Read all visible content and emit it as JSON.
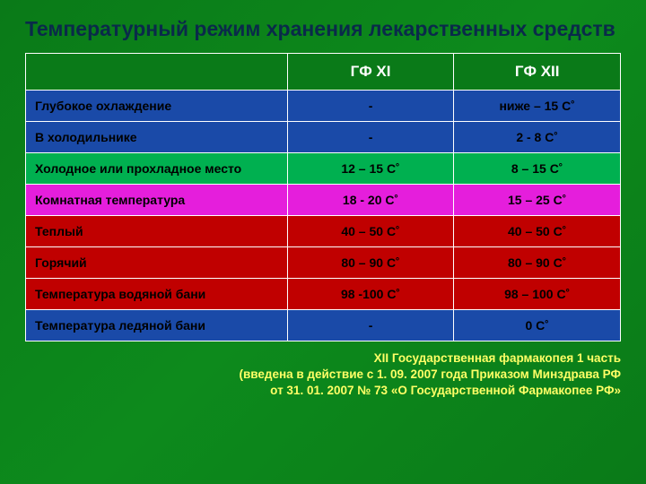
{
  "title": "Температурный режим хранения лекарственных средств",
  "table": {
    "header": {
      "corner": "",
      "col1": "ГФ XI",
      "col2": "ГФ XII"
    },
    "rows": [
      {
        "label": "Глубокое охлаждение",
        "v1": "-",
        "v2": "ниже – 15 С˚",
        "bg": "#1a4aa8"
      },
      {
        "label": "В холодильнике",
        "v1": "-",
        "v2": "2  -  8 С˚",
        "bg": "#1a4aa8"
      },
      {
        "label": "Холодное или прохладное место",
        "v1": "12 – 15 С˚",
        "v2": "8 – 15 С˚",
        "bg": "#00b050"
      },
      {
        "label": "Комнатная температура",
        "v1": "18 - 20 С˚",
        "v2": "15 – 25 С˚",
        "bg": "#e51edc"
      },
      {
        "label": "Теплый",
        "v1": "40 – 50 С˚",
        "v2": "40 – 50 С˚",
        "bg": "#c00000"
      },
      {
        "label": "Горячий",
        "v1": "80 – 90 С˚",
        "v2": "80 – 90 С˚",
        "bg": "#c00000"
      },
      {
        "label": "Температура водяной бани",
        "v1": "98 -100 С˚",
        "v2": "98 – 100 С˚",
        "bg": "#c00000"
      },
      {
        "label": "Температура ледяной бани",
        "v1": "-",
        "v2": "0 С˚",
        "bg": "#1a4aa8"
      }
    ]
  },
  "footer": {
    "l1": "XII Государственная фармакопея 1 часть",
    "l2": "(введена в действие с 1. 09. 2007 года Приказом Минздрава РФ",
    "l3": "от 31. 01. 2007 № 73 «О Государственной Фармакопее РФ»"
  }
}
